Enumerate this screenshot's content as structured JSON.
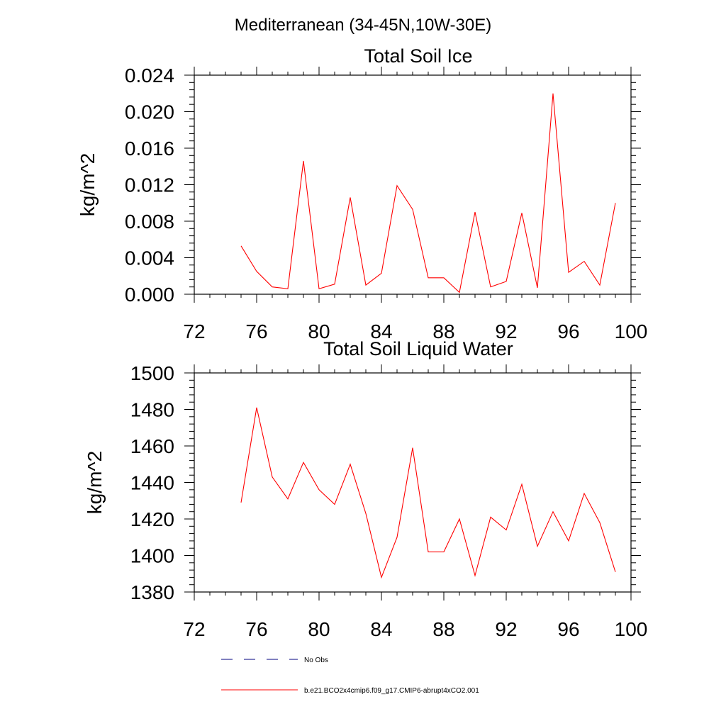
{
  "figure": {
    "suptitle": "Mediterranean (34-45N,10W-30E)"
  },
  "chart_data": [
    {
      "type": "line",
      "title": "Total Soil Ice",
      "xlabel": "",
      "ylabel": "kg/m^2",
      "xlim": [
        72,
        100
      ],
      "ylim": [
        0,
        0.024
      ],
      "xticks": [
        72,
        76,
        80,
        84,
        88,
        92,
        96,
        100
      ],
      "xtick_labels": [
        "72",
        "76",
        "80",
        "84",
        "88",
        "92",
        "96",
        "100"
      ],
      "yticks": [
        0,
        0.004,
        0.008,
        0.012,
        0.016,
        0.02,
        0.024
      ],
      "ytick_labels": [
        "0.000",
        "0.004",
        "0.008",
        "0.012",
        "0.016",
        "0.020",
        "0.024"
      ],
      "grid": false,
      "x": [
        75,
        76,
        77,
        78,
        79,
        80,
        81,
        82,
        83,
        84,
        85,
        86,
        87,
        88,
        89,
        90,
        91,
        92,
        93,
        94,
        95,
        96,
        97,
        98,
        99
      ],
      "series": [
        {
          "name": "b.e21.BCO2x4cmip6.f09_g17.CMIP6-abrupt4xCO2.001",
          "color": "#ff0000",
          "values": [
            0.0053,
            0.0025,
            0.0008,
            0.0006,
            0.0146,
            0.0006,
            0.0011,
            0.0106,
            0.001,
            0.0023,
            0.0119,
            0.0093,
            0.0018,
            0.0018,
            0.0002,
            0.009,
            0.0008,
            0.0014,
            0.0089,
            0.0007,
            0.022,
            0.0024,
            0.0036,
            0.001,
            0.01
          ]
        }
      ]
    },
    {
      "type": "line",
      "title": "Total Soil Liquid Water",
      "xlabel": "",
      "ylabel": "kg/m^2",
      "xlim": [
        72,
        100
      ],
      "ylim": [
        1380,
        1500
      ],
      "xticks": [
        72,
        76,
        80,
        84,
        88,
        92,
        96,
        100
      ],
      "xtick_labels": [
        "72",
        "76",
        "80",
        "84",
        "88",
        "92",
        "96",
        "100"
      ],
      "yticks": [
        1380,
        1400,
        1420,
        1440,
        1460,
        1480,
        1500
      ],
      "ytick_labels": [
        "1380",
        "1400",
        "1420",
        "1440",
        "1460",
        "1480",
        "1500"
      ],
      "grid": false,
      "x": [
        75,
        76,
        77,
        78,
        79,
        80,
        81,
        82,
        83,
        84,
        85,
        86,
        87,
        88,
        89,
        90,
        91,
        92,
        93,
        94,
        95,
        96,
        97,
        98,
        99
      ],
      "series": [
        {
          "name": "b.e21.BCO2x4cmip6.f09_g17.CMIP6-abrupt4xCO2.001",
          "color": "#ff0000",
          "values": [
            1429,
            1481,
            1443,
            1431,
            1451,
            1436,
            1428,
            1450,
            1423,
            1388,
            1410,
            1459,
            1402,
            1402,
            1420,
            1389,
            1421,
            1414,
            1439,
            1405,
            1424,
            1408,
            1434,
            1418,
            1391
          ]
        }
      ]
    }
  ],
  "legend": {
    "placement": "bottom",
    "entries": [
      {
        "label": "No Obs",
        "style": "dashed",
        "color": "#000080"
      },
      {
        "label": "b.e21.BCO2x4cmip6.f09_g17.CMIP6-abrupt4xCO2.001",
        "style": "solid",
        "color": "#ff0000"
      }
    ]
  }
}
